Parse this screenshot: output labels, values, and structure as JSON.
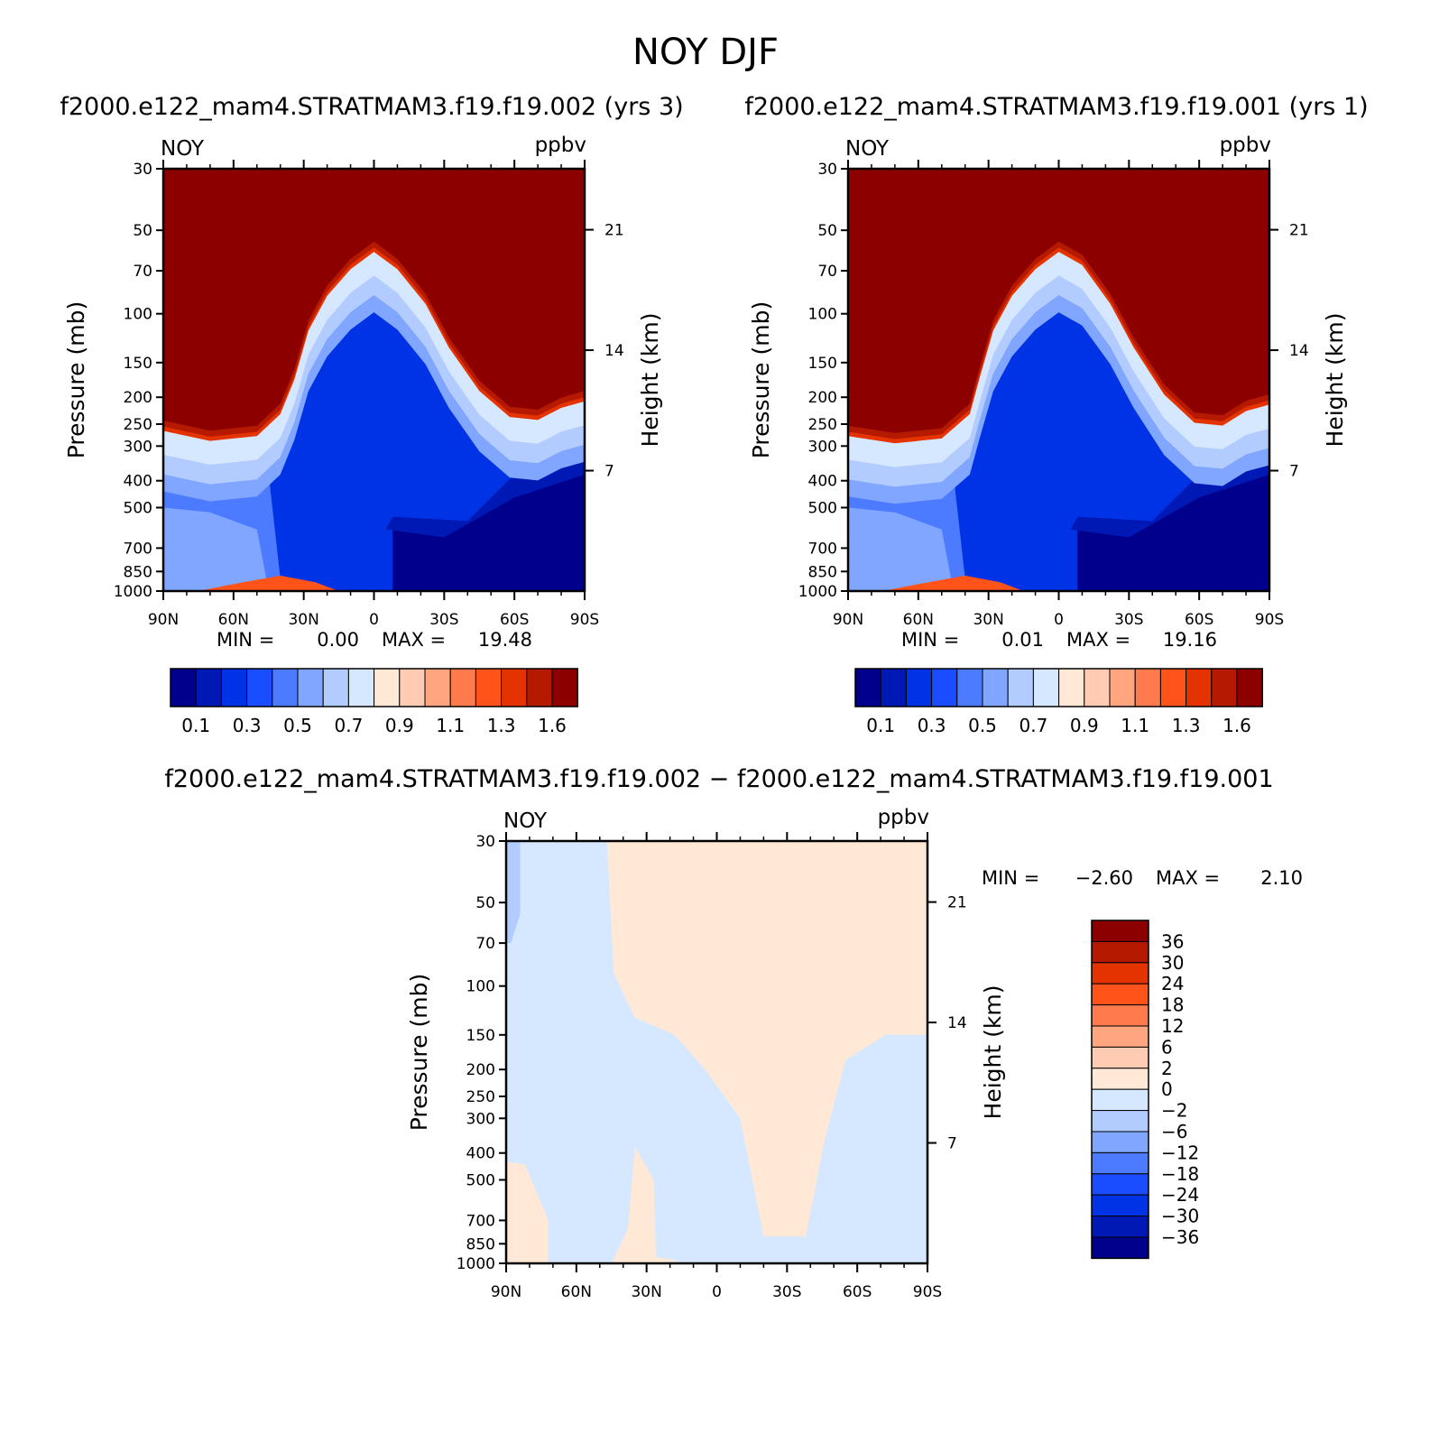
{
  "chart_data": {
    "type": "contour",
    "title": "NOY DJF",
    "panels": [
      {
        "id": "case1",
        "subtitle": "f2000.e122_mam4.STRATMAM3.f19.f19.002 (yrs 3)",
        "variable": "NOY",
        "units": "ppbv",
        "ylabel": "Pressure (mb)",
        "ylabel_right": "Height (km)",
        "min_label": "MIN =",
        "min_value": "0.00",
        "max_label": "MAX =",
        "max_value": "19.48",
        "colorbar_labels": [
          "0.1",
          "0.3",
          "0.5",
          "0.7",
          "0.9",
          "1.1",
          "1.3",
          "1.6"
        ],
        "crest_pressure": 50,
        "boundary": [
          {
            "lat": 90,
            "p": 230
          },
          {
            "lat": 70,
            "p": 250
          },
          {
            "lat": 50,
            "p": 240
          },
          {
            "lat": 40,
            "p": 200
          },
          {
            "lat": 34,
            "p": 150
          },
          {
            "lat": 28,
            "p": 100
          },
          {
            "lat": 20,
            "p": 75
          },
          {
            "lat": 10,
            "p": 60
          },
          {
            "lat": 0,
            "p": 52
          },
          {
            "lat": -10,
            "p": 60
          },
          {
            "lat": -22,
            "p": 80
          },
          {
            "lat": -32,
            "p": 115
          },
          {
            "lat": -45,
            "p": 165
          },
          {
            "lat": -58,
            "p": 205
          },
          {
            "lat": -70,
            "p": 210
          },
          {
            "lat": -80,
            "p": 190
          },
          {
            "lat": -90,
            "p": 180
          }
        ]
      },
      {
        "id": "case2",
        "subtitle": "f2000.e122_mam4.STRATMAM3.f19.f19.001 (yrs 1)",
        "variable": "NOY",
        "units": "ppbv",
        "ylabel": "Pressure (mb)",
        "ylabel_right": "Height (km)",
        "min_label": "MIN =",
        "min_value": "0.01",
        "max_label": "MAX =",
        "max_value": "19.16",
        "colorbar_labels": [
          "0.1",
          "0.3",
          "0.5",
          "0.7",
          "0.9",
          "1.1",
          "1.3",
          "1.6"
        ],
        "crest_pressure": 50,
        "boundary": [
          {
            "lat": 90,
            "p": 240
          },
          {
            "lat": 70,
            "p": 255
          },
          {
            "lat": 50,
            "p": 245
          },
          {
            "lat": 38,
            "p": 200
          },
          {
            "lat": 34,
            "p": 150
          },
          {
            "lat": 28,
            "p": 100
          },
          {
            "lat": 20,
            "p": 75
          },
          {
            "lat": 10,
            "p": 60
          },
          {
            "lat": 0,
            "p": 52
          },
          {
            "lat": -10,
            "p": 58
          },
          {
            "lat": -22,
            "p": 80
          },
          {
            "lat": -32,
            "p": 115
          },
          {
            "lat": -45,
            "p": 170
          },
          {
            "lat": -58,
            "p": 215
          },
          {
            "lat": -70,
            "p": 220
          },
          {
            "lat": -80,
            "p": 195
          },
          {
            "lat": -90,
            "p": 185
          }
        ]
      },
      {
        "id": "diff",
        "subtitle": "f2000.e122_mam4.STRATMAM3.f19.f19.002 − f2000.e122_mam4.STRATMAM3.f19.f19.001",
        "variable": "NOY",
        "units": "ppbv",
        "ylabel": "Pressure (mb)",
        "ylabel_right": "Height (km)",
        "min_label": "MIN =",
        "min_value": "−2.60",
        "max_label": "MAX =",
        "max_value": "2.10",
        "colorbar_labels": [
          "36",
          "30",
          "24",
          "18",
          "12",
          "6",
          "2",
          "0",
          "−2",
          "−6",
          "−12",
          "−18",
          "−24",
          "−30",
          "−36"
        ],
        "positive_regions": [
          [
            {
              "lat": 47,
              "p": 30
            },
            {
              "lat": -90,
              "p": 30
            },
            {
              "lat": -90,
              "p": 150
            },
            {
              "lat": -72,
              "p": 150
            },
            {
              "lat": -55,
              "p": 185
            },
            {
              "lat": -46,
              "p": 360
            },
            {
              "lat": -38,
              "p": 800
            },
            {
              "lat": -20,
              "p": 800
            },
            {
              "lat": -10,
              "p": 300
            },
            {
              "lat": 5,
              "p": 200
            },
            {
              "lat": 18,
              "p": 150
            },
            {
              "lat": 35,
              "p": 130
            },
            {
              "lat": 44,
              "p": 90
            }
          ],
          [
            {
              "lat": 90,
              "p": 430
            },
            {
              "lat": 82,
              "p": 440
            },
            {
              "lat": 72,
              "p": 700
            },
            {
              "lat": 72,
              "p": 1000
            },
            {
              "lat": 90,
              "p": 1000
            }
          ],
          [
            {
              "lat": 35,
              "p": 380
            },
            {
              "lat": 27,
              "p": 500
            },
            {
              "lat": 26,
              "p": 950
            },
            {
              "lat": 15,
              "p": 980
            },
            {
              "lat": 30,
              "p": 1000
            },
            {
              "lat": 45,
              "p": 1000
            },
            {
              "lat": 38,
              "p": 750
            }
          ]
        ]
      }
    ],
    "x_ticks": [
      "90N",
      "60N",
      "30N",
      "0",
      "30S",
      "60S",
      "90S"
    ],
    "y_ticks": [
      "30",
      "50",
      "70",
      "100",
      "150",
      "200",
      "250",
      "300",
      "400",
      "500",
      "700",
      "850",
      "1000"
    ],
    "height_ticks": [
      "7",
      "14",
      "21"
    ],
    "ylim": [
      1000,
      30
    ],
    "xlim": [
      90,
      -90
    ],
    "colors": {
      "seq": [
        "#00008c",
        "#0019b5",
        "#0033e5",
        "#1a4dff",
        "#4d7bff",
        "#80a6ff",
        "#b3ccff",
        "#d6e8ff",
        "#ffe9d6",
        "#ffccb3",
        "#ffa680",
        "#ff7b4d",
        "#ff531a",
        "#e53300",
        "#b51900",
        "#8c0000"
      ],
      "diff_pos": "#ffe9d6",
      "diff_neg": "#d6e8ff"
    }
  }
}
